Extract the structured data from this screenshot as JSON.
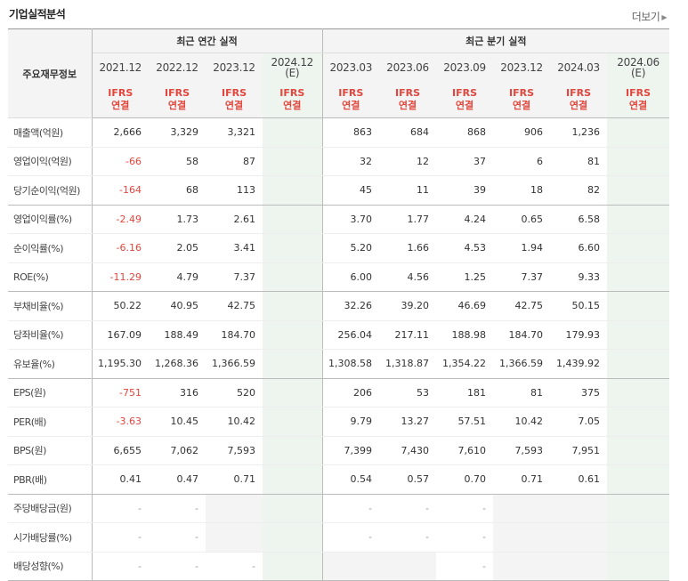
{
  "title": "기업실적분석",
  "more_label": "더보기",
  "header": {
    "label_col": "주요재무정보",
    "annual_group": "최근 연간 실적",
    "quarter_group": "최근 분기 실적",
    "annual_periods": [
      "2021.12",
      "2022.12",
      "2023.12",
      "2024.12",
      "(E)"
    ],
    "quarter_periods": [
      "2023.03",
      "2023.06",
      "2023.09",
      "2023.12",
      "2024.03",
      "2024.06",
      "(E)"
    ],
    "ifrs": "IFRS",
    "consolidated": "연결"
  },
  "rows": [
    {
      "label": "매출액(억원)",
      "annual": [
        "2,666",
        "3,329",
        "3,321",
        ""
      ],
      "quarter": [
        "863",
        "684",
        "868",
        "906",
        "1,236",
        ""
      ]
    },
    {
      "label": "영업이익(억원)",
      "annual": [
        "-66",
        "58",
        "87",
        ""
      ],
      "quarter": [
        "32",
        "12",
        "37",
        "6",
        "81",
        ""
      ]
    },
    {
      "label": "당기순이익(억원)",
      "annual": [
        "-164",
        "68",
        "113",
        ""
      ],
      "quarter": [
        "45",
        "11",
        "39",
        "18",
        "82",
        ""
      ]
    },
    {
      "label": "영업이익률(%)",
      "annual": [
        "-2.49",
        "1.73",
        "2.61",
        ""
      ],
      "quarter": [
        "3.70",
        "1.77",
        "4.24",
        "0.65",
        "6.58",
        ""
      ]
    },
    {
      "label": "순이익률(%)",
      "annual": [
        "-6.16",
        "2.05",
        "3.41",
        ""
      ],
      "quarter": [
        "5.20",
        "1.66",
        "4.53",
        "1.94",
        "6.60",
        ""
      ]
    },
    {
      "label": "ROE(%)",
      "annual": [
        "-11.29",
        "4.79",
        "7.37",
        ""
      ],
      "quarter": [
        "6.00",
        "4.56",
        "1.25",
        "7.37",
        "9.33",
        ""
      ]
    },
    {
      "label": "부채비율(%)",
      "annual": [
        "50.22",
        "40.95",
        "42.75",
        ""
      ],
      "quarter": [
        "32.26",
        "39.20",
        "46.69",
        "42.75",
        "50.15",
        ""
      ]
    },
    {
      "label": "당좌비율(%)",
      "annual": [
        "167.09",
        "188.49",
        "184.70",
        ""
      ],
      "quarter": [
        "256.04",
        "217.11",
        "188.98",
        "184.70",
        "179.93",
        ""
      ]
    },
    {
      "label": "유보율(%)",
      "annual": [
        "1,195.30",
        "1,268.36",
        "1,366.59",
        ""
      ],
      "quarter": [
        "1,308.58",
        "1,318.87",
        "1,354.22",
        "1,366.59",
        "1,439.92",
        ""
      ]
    },
    {
      "label": "EPS(원)",
      "annual": [
        "-751",
        "316",
        "520",
        ""
      ],
      "quarter": [
        "206",
        "53",
        "181",
        "81",
        "375",
        ""
      ]
    },
    {
      "label": "PER(배)",
      "annual": [
        "-3.63",
        "10.45",
        "10.42",
        ""
      ],
      "quarter": [
        "9.79",
        "13.27",
        "57.51",
        "10.42",
        "7.05",
        ""
      ]
    },
    {
      "label": "BPS(원)",
      "annual": [
        "6,655",
        "7,062",
        "7,593",
        ""
      ],
      "quarter": [
        "7,399",
        "7,430",
        "7,610",
        "7,593",
        "7,951",
        ""
      ]
    },
    {
      "label": "PBR(배)",
      "annual": [
        "0.41",
        "0.47",
        "0.71",
        ""
      ],
      "quarter": [
        "0.54",
        "0.57",
        "0.70",
        "0.71",
        "0.61",
        ""
      ]
    },
    {
      "label": "주당배당금(원)",
      "annual": [
        "-",
        "-",
        "",
        ""
      ],
      "quarter": [
        "-",
        "-",
        "-",
        "",
        "",
        ""
      ]
    },
    {
      "label": "시가배당률(%)",
      "annual": [
        "-",
        "-",
        "",
        ""
      ],
      "quarter": [
        "-",
        "-",
        "-",
        "",
        "",
        ""
      ]
    },
    {
      "label": "배당성향(%)",
      "annual": [
        "-",
        "-",
        "-",
        ""
      ],
      "quarter": [
        "",
        "",
        "-",
        "",
        "",
        ""
      ]
    }
  ]
}
